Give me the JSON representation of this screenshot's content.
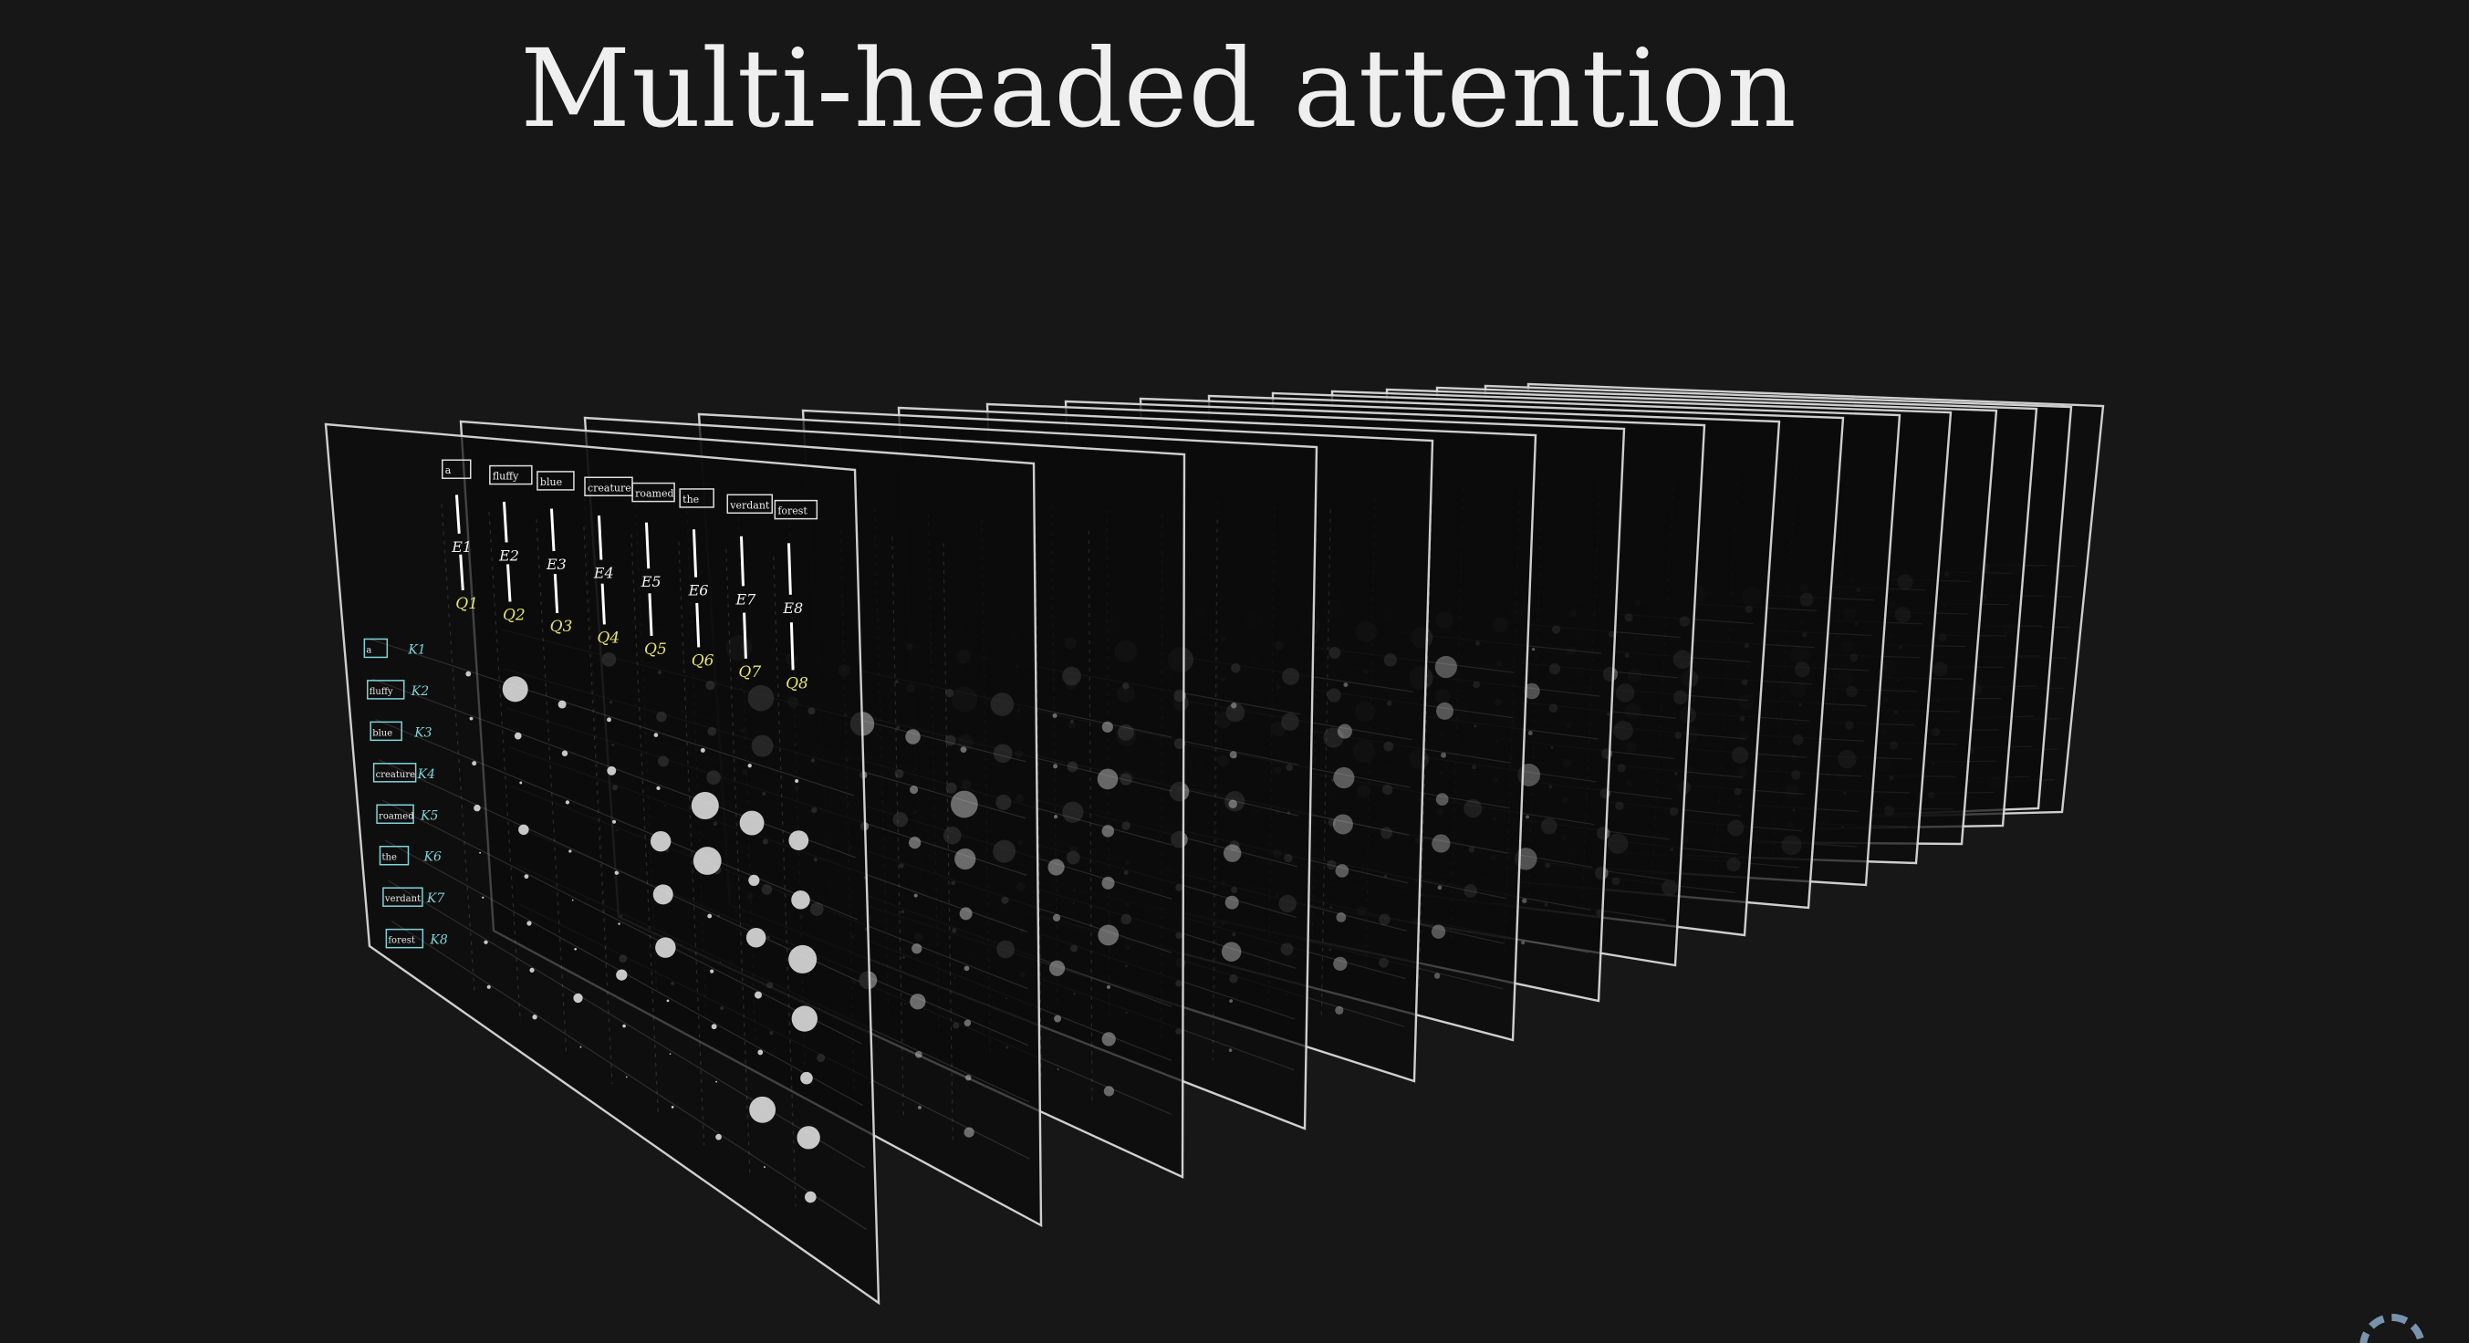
{
  "slide": {
    "title": "Multi-headed attention"
  },
  "front_panel": {
    "query_tokens": [
      "a",
      "fluffy",
      "blue",
      "creature",
      "roamed",
      "the",
      "verdant",
      "forest"
    ],
    "key_tokens": [
      "a",
      "fluffy",
      "blue",
      "creature",
      "roamed",
      "the",
      "verdant",
      "forest"
    ],
    "query_symbols": [
      "Q1",
      "Q2",
      "Q3",
      "Q4",
      "Q5",
      "Q6",
      "Q7",
      "Q8"
    ],
    "embedding_symbols": [
      "E1",
      "E2",
      "E3",
      "E4",
      "E5",
      "E6",
      "E7",
      "E8"
    ],
    "key_symbols": [
      "K1",
      "K2",
      "K3",
      "K4",
      "K5",
      "K6",
      "K7",
      "K8"
    ]
  },
  "colors": {
    "background": "#171717",
    "panel_border": "#d9d9d9",
    "panel_fill": "#0b0b0b",
    "query_color": "#e4e46a",
    "key_color": "#7fd3d9",
    "dot_color": "#d8d8d8"
  },
  "icons": [
    "loading-spinner-icon"
  ]
}
